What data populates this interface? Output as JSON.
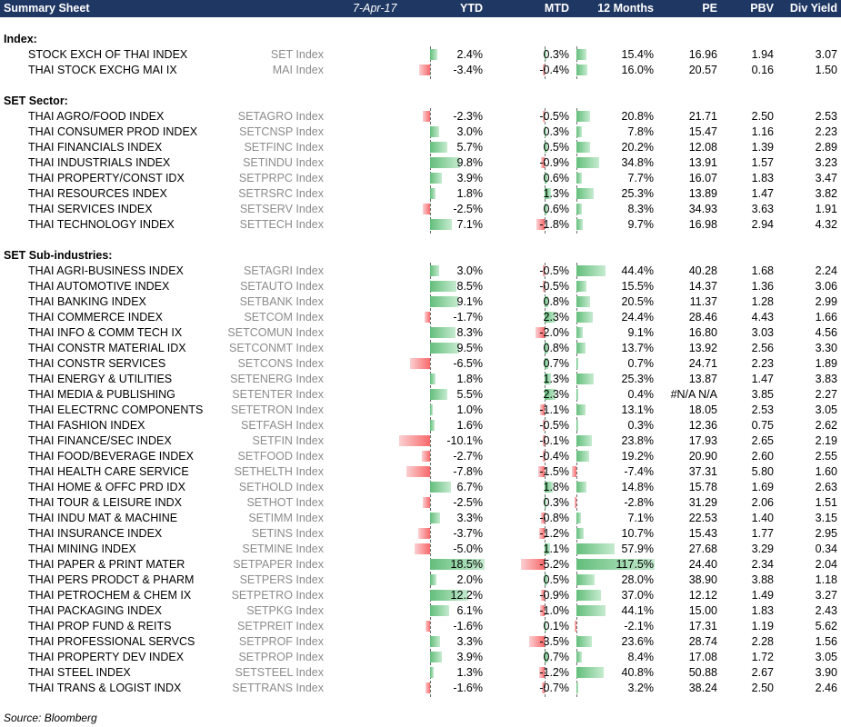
{
  "header": {
    "title": "Summary Sheet",
    "date": "7-Apr-17",
    "columns": [
      "YTD",
      "MTD",
      "12 Months",
      "PE",
      "PBV",
      "Div Yield"
    ]
  },
  "sections": [
    {
      "title": "Index:",
      "rows": [
        {
          "name": "STOCK EXCH OF THAI INDEX",
          "ticker": "SET Index",
          "ytd": "2.4%",
          "mtd": "0.3%",
          "m12": "15.4%",
          "pe": "16.96",
          "pbv": "1.94",
          "dy": "3.07"
        },
        {
          "name": "THAI STOCK EXCHG MAI IX",
          "ticker": "MAI Index",
          "ytd": "-3.4%",
          "mtd": "-0.4%",
          "m12": "16.0%",
          "pe": "20.57",
          "pbv": "0.16",
          "dy": "1.50"
        }
      ]
    },
    {
      "title": "SET Sector:",
      "rows": [
        {
          "name": "THAI AGRO/FOOD INDEX",
          "ticker": "SETAGRO Index",
          "ytd": "-2.3%",
          "mtd": "-0.5%",
          "m12": "20.8%",
          "pe": "21.71",
          "pbv": "2.50",
          "dy": "2.53"
        },
        {
          "name": "THAI CONSUMER PROD INDEX",
          "ticker": "SETCNSP Index",
          "ytd": "3.0%",
          "mtd": "0.3%",
          "m12": "7.8%",
          "pe": "15.47",
          "pbv": "1.16",
          "dy": "2.23"
        },
        {
          "name": "THAI FINANCIALS INDEX",
          "ticker": "SETFINC Index",
          "ytd": "5.7%",
          "mtd": "0.5%",
          "m12": "20.2%",
          "pe": "12.08",
          "pbv": "1.39",
          "dy": "2.89"
        },
        {
          "name": "THAI INDUSTRIALS INDEX",
          "ticker": "SETINDU Index",
          "ytd": "9.8%",
          "mtd": "-0.9%",
          "m12": "34.8%",
          "pe": "13.91",
          "pbv": "1.57",
          "dy": "3.23"
        },
        {
          "name": "THAI PROPERTY/CONST IDX",
          "ticker": "SETPRPC Index",
          "ytd": "3.9%",
          "mtd": "0.6%",
          "m12": "7.7%",
          "pe": "16.07",
          "pbv": "1.83",
          "dy": "3.47"
        },
        {
          "name": "THAI RESOURCES INDEX",
          "ticker": "SETRSRC Index",
          "ytd": "1.8%",
          "mtd": "1.3%",
          "m12": "25.3%",
          "pe": "13.89",
          "pbv": "1.47",
          "dy": "3.82"
        },
        {
          "name": "THAI SERVICES INDEX",
          "ticker": "SETSERV Index",
          "ytd": "-2.5%",
          "mtd": "0.6%",
          "m12": "8.3%",
          "pe": "34.93",
          "pbv": "3.63",
          "dy": "1.91"
        },
        {
          "name": "THAI TECHNOLOGY INDEX",
          "ticker": "SETTECH Index",
          "ytd": "7.1%",
          "mtd": "-1.8%",
          "m12": "9.7%",
          "pe": "16.98",
          "pbv": "2.94",
          "dy": "4.32"
        }
      ]
    },
    {
      "title": "SET Sub-industries:",
      "rows": [
        {
          "name": "THAI AGRI-BUSINESS INDEX",
          "ticker": "SETAGRI Index",
          "ytd": "3.0%",
          "mtd": "-0.5%",
          "m12": "44.4%",
          "pe": "40.28",
          "pbv": "1.68",
          "dy": "2.24"
        },
        {
          "name": "THAI AUTOMOTIVE INDEX",
          "ticker": "SETAUTO Index",
          "ytd": "8.5%",
          "mtd": "-0.5%",
          "m12": "15.5%",
          "pe": "14.37",
          "pbv": "1.36",
          "dy": "3.06"
        },
        {
          "name": "THAI BANKING INDEX",
          "ticker": "SETBANK Index",
          "ytd": "9.1%",
          "mtd": "0.8%",
          "m12": "20.5%",
          "pe": "11.37",
          "pbv": "1.28",
          "dy": "2.99"
        },
        {
          "name": "THAI COMMERCE INDEX",
          "ticker": "SETCOM Index",
          "ytd": "-1.7%",
          "mtd": "2.3%",
          "m12": "24.4%",
          "pe": "28.46",
          "pbv": "4.43",
          "dy": "1.66"
        },
        {
          "name": "THAI INFO & COMM TECH IX",
          "ticker": "SETCOMUN Index",
          "ytd": "8.3%",
          "mtd": "-2.0%",
          "m12": "9.1%",
          "pe": "16.80",
          "pbv": "3.03",
          "dy": "4.56"
        },
        {
          "name": "THAI CONSTR MATERIAL IDX",
          "ticker": "SETCONMT Index",
          "ytd": "9.5%",
          "mtd": "0.8%",
          "m12": "13.7%",
          "pe": "13.92",
          "pbv": "2.56",
          "dy": "3.30"
        },
        {
          "name": "THAI CONSTR SERVICES",
          "ticker": "SETCONS Index",
          "ytd": "-6.5%",
          "mtd": "0.7%",
          "m12": "0.7%",
          "pe": "24.71",
          "pbv": "2.23",
          "dy": "1.89"
        },
        {
          "name": "THAI ENERGY & UTILITIES",
          "ticker": "SETENERG Index",
          "ytd": "1.8%",
          "mtd": "1.3%",
          "m12": "25.3%",
          "pe": "13.87",
          "pbv": "1.47",
          "dy": "3.83"
        },
        {
          "name": "THAI MEDIA & PUBLISHING",
          "ticker": "SETENTER Index",
          "ytd": "5.5%",
          "mtd": "2.3%",
          "m12": "0.4%",
          "pe": "#N/A N/A",
          "pbv": "3.85",
          "dy": "2.27"
        },
        {
          "name": "THAI ELECTRNC COMPONENTS",
          "ticker": "SETETRON Index",
          "ytd": "1.0%",
          "mtd": "-1.1%",
          "m12": "13.1%",
          "pe": "18.05",
          "pbv": "2.53",
          "dy": "3.05"
        },
        {
          "name": "THAI FASHION INDEX",
          "ticker": "SETFASH Index",
          "ytd": "1.6%",
          "mtd": "-0.5%",
          "m12": "0.3%",
          "pe": "12.36",
          "pbv": "0.75",
          "dy": "2.62"
        },
        {
          "name": "THAI FINANCE/SEC INDEX",
          "ticker": "SETFIN Index",
          "ytd": "-10.1%",
          "mtd": "-0.1%",
          "m12": "23.8%",
          "pe": "17.93",
          "pbv": "2.65",
          "dy": "2.19"
        },
        {
          "name": "THAI FOOD/BEVERAGE INDEX",
          "ticker": "SETFOOD Index",
          "ytd": "-2.7%",
          "mtd": "-0.4%",
          "m12": "19.2%",
          "pe": "20.90",
          "pbv": "2.60",
          "dy": "2.55"
        },
        {
          "name": "THAI HEALTH CARE SERVICE",
          "ticker": "SETHELTH Index",
          "ytd": "-7.8%",
          "mtd": "-1.5%",
          "m12": "-7.4%",
          "pe": "37.31",
          "pbv": "5.80",
          "dy": "1.60"
        },
        {
          "name": "THAI HOME & OFFC PRD IDX",
          "ticker": "SETHOLD Index",
          "ytd": "6.7%",
          "mtd": "1.8%",
          "m12": "14.8%",
          "pe": "15.78",
          "pbv": "1.69",
          "dy": "2.63"
        },
        {
          "name": "THAI TOUR & LEISURE INDX",
          "ticker": "SETHOT Index",
          "ytd": "-2.5%",
          "mtd": "0.3%",
          "m12": "-2.8%",
          "pe": "31.29",
          "pbv": "2.06",
          "dy": "1.51"
        },
        {
          "name": "THAI INDU MAT & MACHINE",
          "ticker": "SETIMM Index",
          "ytd": "3.3%",
          "mtd": "-0.8%",
          "m12": "7.1%",
          "pe": "22.53",
          "pbv": "1.40",
          "dy": "3.15"
        },
        {
          "name": "THAI INSURANCE INDEX",
          "ticker": "SETINS Index",
          "ytd": "-3.7%",
          "mtd": "-1.2%",
          "m12": "10.7%",
          "pe": "15.43",
          "pbv": "1.77",
          "dy": "2.95"
        },
        {
          "name": "THAI MINING INDEX",
          "ticker": "SETMINE Index",
          "ytd": "-5.0%",
          "mtd": "1.1%",
          "m12": "57.9%",
          "pe": "27.68",
          "pbv": "3.29",
          "dy": "0.34"
        },
        {
          "name": "THAI PAPER & PRINT MATER",
          "ticker": "SETPAPER Index",
          "ytd": "18.5%",
          "mtd": "-5.2%",
          "m12": "117.5%",
          "pe": "24.40",
          "pbv": "2.34",
          "dy": "2.04"
        },
        {
          "name": "THAI PERS PRODCT & PHARM",
          "ticker": "SETPERS Index",
          "ytd": "2.0%",
          "mtd": "0.5%",
          "m12": "28.0%",
          "pe": "38.90",
          "pbv": "3.88",
          "dy": "1.18"
        },
        {
          "name": "THAI PETROCHEM & CHEM IX",
          "ticker": "SETPETRO Index",
          "ytd": "12.2%",
          "mtd": "-0.9%",
          "m12": "37.0%",
          "pe": "12.12",
          "pbv": "1.49",
          "dy": "3.27"
        },
        {
          "name": "THAI PACKAGING INDEX",
          "ticker": "SETPKG Index",
          "ytd": "6.1%",
          "mtd": "-1.0%",
          "m12": "44.1%",
          "pe": "15.00",
          "pbv": "1.83",
          "dy": "2.43"
        },
        {
          "name": "THAI PROP FUND & REITS",
          "ticker": "SETPREIT Index",
          "ytd": "-1.6%",
          "mtd": "0.1%",
          "m12": "-2.1%",
          "pe": "17.31",
          "pbv": "1.19",
          "dy": "5.62"
        },
        {
          "name": "THAI PROFESSIONAL SERVCS",
          "ticker": "SETPROF Index",
          "ytd": "3.3%",
          "mtd": "-3.5%",
          "m12": "23.6%",
          "pe": "28.74",
          "pbv": "2.28",
          "dy": "1.56"
        },
        {
          "name": "THAI PROPERTY DEV INDEX",
          "ticker": "SETPROP Index",
          "ytd": "3.9%",
          "mtd": "0.7%",
          "m12": "8.4%",
          "pe": "17.08",
          "pbv": "1.72",
          "dy": "3.05"
        },
        {
          "name": "THAI STEEL INDEX",
          "ticker": "SETSTEEL Index",
          "ytd": "1.3%",
          "mtd": "-1.2%",
          "m12": "40.8%",
          "pe": "50.88",
          "pbv": "2.67",
          "dy": "3.90"
        },
        {
          "name": "THAI TRANS & LOGIST INDX",
          "ticker": "SETTRANS Index",
          "ytd": "-1.6%",
          "mtd": "-0.7%",
          "m12": "3.2%",
          "pe": "38.24",
          "pbv": "2.50",
          "dy": "2.46"
        }
      ]
    }
  ],
  "source": "Source: Bloomberg",
  "colors": {
    "header_bg": "#1f3763",
    "bar_positive": "#63be7b",
    "bar_negative": "#f8696b",
    "ticker_text": "#8c8c8c"
  }
}
